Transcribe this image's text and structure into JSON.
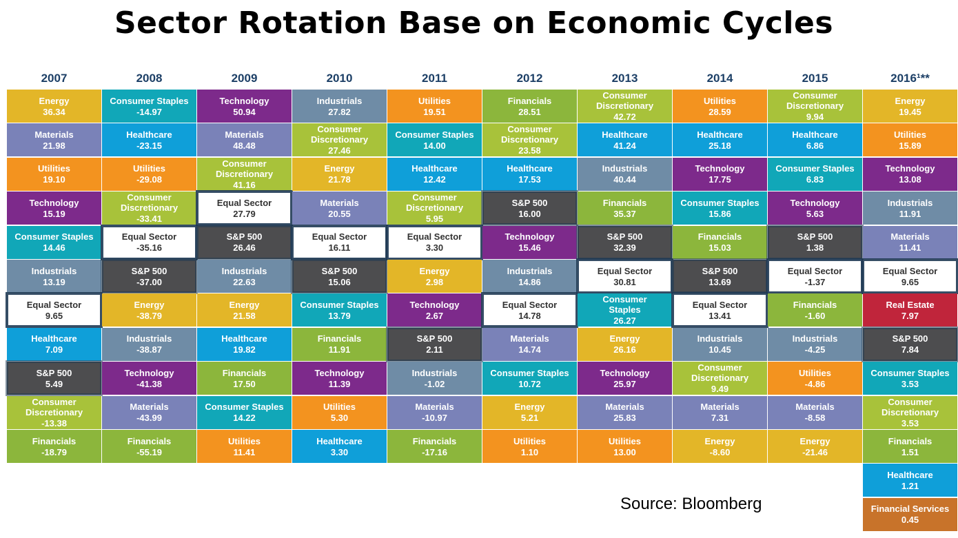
{
  "title": "Sector Rotation Base on Economic Cycles",
  "source": "Source: Bloomberg",
  "colors": {
    "Energy": "#e3b628",
    "Materials": "#7a82b8",
    "Utilities": "#f3931f",
    "Technology": "#7d2a8b",
    "Consumer Staples": "#11a7b8",
    "Industrials": "#6f8ca6",
    "Equal Sector": "#ffffff",
    "Healthcare": "#0f9fd9",
    "S&P 500": "#4d4d4f",
    "Consumer Discretionary": "#a8c23a",
    "Financials": "#8cb63c",
    "Real Estate": "#c0253b",
    "Financial Services": "#c8732a",
    "outline": "#1f3a54"
  },
  "chart_data": {
    "type": "table",
    "title": "Sector Rotation Base on Economic Cycles",
    "columns": [
      {
        "year": "2007",
        "rows": [
          {
            "sector": "Energy",
            "value": "36.34"
          },
          {
            "sector": "Materials",
            "value": "21.98"
          },
          {
            "sector": "Utilities",
            "value": "19.10"
          },
          {
            "sector": "Technology",
            "value": "15.19"
          },
          {
            "sector": "Consumer Staples",
            "value": "14.46"
          },
          {
            "sector": "Industrials",
            "value": "13.19"
          },
          {
            "sector": "Equal Sector",
            "value": "9.65"
          },
          {
            "sector": "Healthcare",
            "value": "7.09"
          },
          {
            "sector": "S&P 500",
            "value": "5.49"
          },
          {
            "sector": "Consumer Discretionary",
            "value": "-13.38"
          },
          {
            "sector": "Financials",
            "value": "-18.79"
          }
        ]
      },
      {
        "year": "2008",
        "rows": [
          {
            "sector": "Consumer Staples",
            "value": "-14.97"
          },
          {
            "sector": "Healthcare",
            "value": "-23.15"
          },
          {
            "sector": "Utilities",
            "value": "-29.08"
          },
          {
            "sector": "Consumer Discretionary",
            "value": "-33.41"
          },
          {
            "sector": "Equal Sector",
            "value": "-35.16"
          },
          {
            "sector": "S&P 500",
            "value": "-37.00"
          },
          {
            "sector": "Energy",
            "value": "-38.79"
          },
          {
            "sector": "Industrials",
            "value": "-38.87"
          },
          {
            "sector": "Technology",
            "value": "-41.38"
          },
          {
            "sector": "Materials",
            "value": "-43.99"
          },
          {
            "sector": "Financials",
            "value": "-55.19"
          }
        ]
      },
      {
        "year": "2009",
        "rows": [
          {
            "sector": "Technology",
            "value": "50.94"
          },
          {
            "sector": "Materials",
            "value": "48.48"
          },
          {
            "sector": "Consumer Discretionary",
            "value": "41.16"
          },
          {
            "sector": "Equal Sector",
            "value": "27.79"
          },
          {
            "sector": "S&P 500",
            "value": "26.46"
          },
          {
            "sector": "Industrials",
            "value": "22.63"
          },
          {
            "sector": "Energy",
            "value": "21.58"
          },
          {
            "sector": "Healthcare",
            "value": "19.82"
          },
          {
            "sector": "Financials",
            "value": "17.50"
          },
          {
            "sector": "Consumer Staples",
            "value": "14.22"
          },
          {
            "sector": "Utilities",
            "value": "11.41"
          }
        ]
      },
      {
        "year": "2010",
        "rows": [
          {
            "sector": "Industrials",
            "value": "27.82"
          },
          {
            "sector": "Consumer Discretionary",
            "value": "27.46"
          },
          {
            "sector": "Energy",
            "value": "21.78"
          },
          {
            "sector": "Materials",
            "value": "20.55"
          },
          {
            "sector": "Equal Sector",
            "value": "16.11"
          },
          {
            "sector": "S&P 500",
            "value": "15.06"
          },
          {
            "sector": "Consumer Staples",
            "value": "13.79"
          },
          {
            "sector": "Financials",
            "value": "11.91"
          },
          {
            "sector": "Technology",
            "value": "11.39"
          },
          {
            "sector": "Utilities",
            "value": "5.30"
          },
          {
            "sector": "Healthcare",
            "value": "3.30"
          }
        ]
      },
      {
        "year": "2011",
        "rows": [
          {
            "sector": "Utilities",
            "value": "19.51"
          },
          {
            "sector": "Consumer Staples",
            "value": "14.00"
          },
          {
            "sector": "Healthcare",
            "value": "12.42"
          },
          {
            "sector": "Consumer Discretionary",
            "value": "5.95"
          },
          {
            "sector": "Equal Sector",
            "value": "3.30"
          },
          {
            "sector": "Energy",
            "value": "2.98"
          },
          {
            "sector": "Technology",
            "value": "2.67"
          },
          {
            "sector": "S&P 500",
            "value": "2.11"
          },
          {
            "sector": "Industrials",
            "value": "-1.02"
          },
          {
            "sector": "Materials",
            "value": "-10.97"
          },
          {
            "sector": "Financials",
            "value": "-17.16"
          }
        ]
      },
      {
        "year": "2012",
        "rows": [
          {
            "sector": "Financials",
            "value": "28.51"
          },
          {
            "sector": "Consumer Discretionary",
            "value": "23.58"
          },
          {
            "sector": "Healthcare",
            "value": "17.53"
          },
          {
            "sector": "S&P 500",
            "value": "16.00"
          },
          {
            "sector": "Technology",
            "value": "15.46"
          },
          {
            "sector": "Industrials",
            "value": "14.86"
          },
          {
            "sector": "Equal Sector",
            "value": "14.78"
          },
          {
            "sector": "Materials",
            "value": "14.74"
          },
          {
            "sector": "Consumer Staples",
            "value": "10.72"
          },
          {
            "sector": "Energy",
            "value": "5.21"
          },
          {
            "sector": "Utilities",
            "value": "1.10"
          }
        ]
      },
      {
        "year": "2013",
        "rows": [
          {
            "sector": "Consumer Discretionary",
            "value": "42.72"
          },
          {
            "sector": "Healthcare",
            "value": "41.24"
          },
          {
            "sector": "Industrials",
            "value": "40.44"
          },
          {
            "sector": "Financials",
            "value": "35.37"
          },
          {
            "sector": "S&P 500",
            "value": "32.39"
          },
          {
            "sector": "Equal Sector",
            "value": "30.81"
          },
          {
            "sector": "Consumer Staples",
            "value": "26.27"
          },
          {
            "sector": "Energy",
            "value": "26.16"
          },
          {
            "sector": "Technology",
            "value": "25.97"
          },
          {
            "sector": "Materials",
            "value": "25.83"
          },
          {
            "sector": "Utilities",
            "value": "13.00"
          }
        ]
      },
      {
        "year": "2014",
        "rows": [
          {
            "sector": "Utilities",
            "value": "28.59"
          },
          {
            "sector": "Healthcare",
            "value": "25.18"
          },
          {
            "sector": "Technology",
            "value": "17.75"
          },
          {
            "sector": "Consumer Staples",
            "value": "15.86"
          },
          {
            "sector": "Financials",
            "value": "15.03"
          },
          {
            "sector": "S&P 500",
            "value": "13.69"
          },
          {
            "sector": "Equal Sector",
            "value": "13.41"
          },
          {
            "sector": "Industrials",
            "value": "10.45"
          },
          {
            "sector": "Consumer Discretionary",
            "value": "9.49"
          },
          {
            "sector": "Materials",
            "value": "7.31"
          },
          {
            "sector": "Energy",
            "value": "-8.60"
          }
        ]
      },
      {
        "year": "2015",
        "rows": [
          {
            "sector": "Consumer Discretionary",
            "value": "9.94"
          },
          {
            "sector": "Healthcare",
            "value": "6.86"
          },
          {
            "sector": "Consumer Staples",
            "value": "6.83"
          },
          {
            "sector": "Technology",
            "value": "5.63"
          },
          {
            "sector": "S&P 500",
            "value": "1.38"
          },
          {
            "sector": "Equal Sector",
            "value": "-1.37"
          },
          {
            "sector": "Financials",
            "value": "-1.60"
          },
          {
            "sector": "Industrials",
            "value": "-4.25"
          },
          {
            "sector": "Utilities",
            "value": "-4.86"
          },
          {
            "sector": "Materials",
            "value": "-8.58"
          },
          {
            "sector": "Energy",
            "value": "-21.46"
          }
        ]
      },
      {
        "year": "2016¹**",
        "rows": [
          {
            "sector": "Energy",
            "value": "19.45"
          },
          {
            "sector": "Utilities",
            "value": "15.89"
          },
          {
            "sector": "Technology",
            "value": "13.08"
          },
          {
            "sector": "Industrials",
            "value": "11.91"
          },
          {
            "sector": "Materials",
            "value": "11.41"
          },
          {
            "sector": "Equal Sector",
            "value": "9.65"
          },
          {
            "sector": "Real Estate",
            "value": "7.97"
          },
          {
            "sector": "S&P 500",
            "value": "7.84"
          },
          {
            "sector": "Consumer Staples",
            "value": "3.53"
          },
          {
            "sector": "Consumer Discretionary",
            "value": "3.53"
          },
          {
            "sector": "Financials",
            "value": "1.51"
          },
          {
            "sector": "Healthcare",
            "value": "1.21"
          },
          {
            "sector": "Financial Services",
            "value": "0.45"
          }
        ]
      }
    ]
  }
}
